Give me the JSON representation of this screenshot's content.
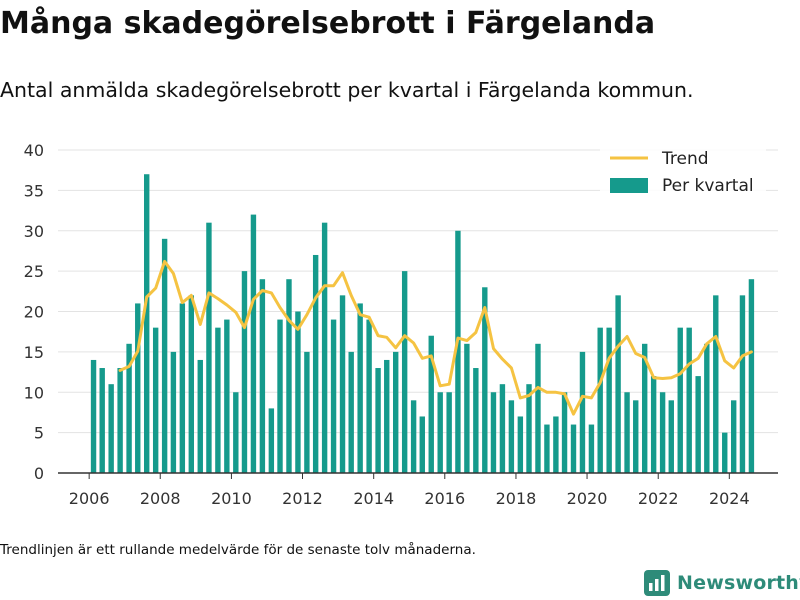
{
  "title": "Många skadegörelsebrott i Färgelanda",
  "subtitle": "Antal anmälda skadegörelsebrott per kvartal i Färgelanda kommun.",
  "footnote": "Trendlinjen är ett rullande medelvärde för de senaste tolv månaderna.",
  "brand": "Newsworthy",
  "colors": {
    "bars": "#159a8c",
    "trend": "#f5c342",
    "grid": "#e3e3e3",
    "axis": "#333333",
    "brand": "#2e8b79"
  },
  "chart_data": {
    "type": "bar",
    "x_axis": {
      "type": "date",
      "min": "2005-02-15",
      "max": "2025-05-15",
      "ticks": [
        "2006",
        "2008",
        "2010",
        "2012",
        "2014",
        "2016",
        "2018",
        "2020",
        "2022",
        "2024"
      ]
    },
    "y_axis": {
      "ticks": [
        "0",
        "5",
        "10",
        "15",
        "20",
        "25",
        "30",
        "35",
        "40"
      ],
      "ylim": [
        0,
        40
      ]
    },
    "grid": true,
    "legend": {
      "position": "top-right"
    },
    "series": [
      {
        "name": "Per kvartal",
        "type": "bar",
        "start_quarter": "2006-Q1",
        "values": [
          14,
          13,
          11,
          13,
          16,
          21,
          37,
          18,
          29,
          15,
          21,
          22,
          14,
          31,
          18,
          19,
          10,
          25,
          32,
          24,
          8,
          19,
          24,
          20,
          15,
          27,
          31,
          19,
          22,
          15,
          21,
          19,
          13,
          14,
          15,
          25,
          9,
          7,
          17,
          10,
          10,
          30,
          16,
          13,
          23,
          10,
          11,
          9,
          7,
          11,
          16,
          6,
          7,
          10,
          6,
          15,
          6,
          18,
          18,
          22,
          10,
          9,
          16,
          12,
          10,
          9,
          18,
          18,
          12,
          16,
          22,
          5,
          9,
          22,
          24
        ]
      },
      {
        "name": "Trend",
        "type": "line",
        "start_quarter": "2006-Q4",
        "values": [
          12.7,
          13.2,
          15.1,
          21.8,
          22.9,
          26.2,
          24.7,
          21.1,
          22.0,
          18.4,
          22.3,
          21.6,
          20.8,
          19.9,
          18.0,
          21.5,
          22.6,
          22.3,
          20.5,
          18.9,
          17.8,
          19.6,
          21.7,
          23.2,
          23.2,
          24.8,
          22.0,
          19.6,
          19.3,
          17.0,
          16.8,
          15.5,
          17.0,
          16.1,
          14.2,
          14.5,
          10.8,
          11.0,
          16.7,
          16.4,
          17.4,
          20.5,
          15.4,
          14.1,
          13.0,
          9.3,
          9.6,
          10.6,
          10.0,
          10.0,
          9.8,
          7.3,
          9.5,
          9.3,
          11.2,
          14.2,
          15.7,
          16.9,
          14.8,
          14.3,
          11.8,
          11.7,
          11.8,
          12.3,
          13.5,
          14.2,
          16.0,
          16.9,
          13.9,
          13.0,
          14.5,
          15.0
        ]
      }
    ]
  }
}
